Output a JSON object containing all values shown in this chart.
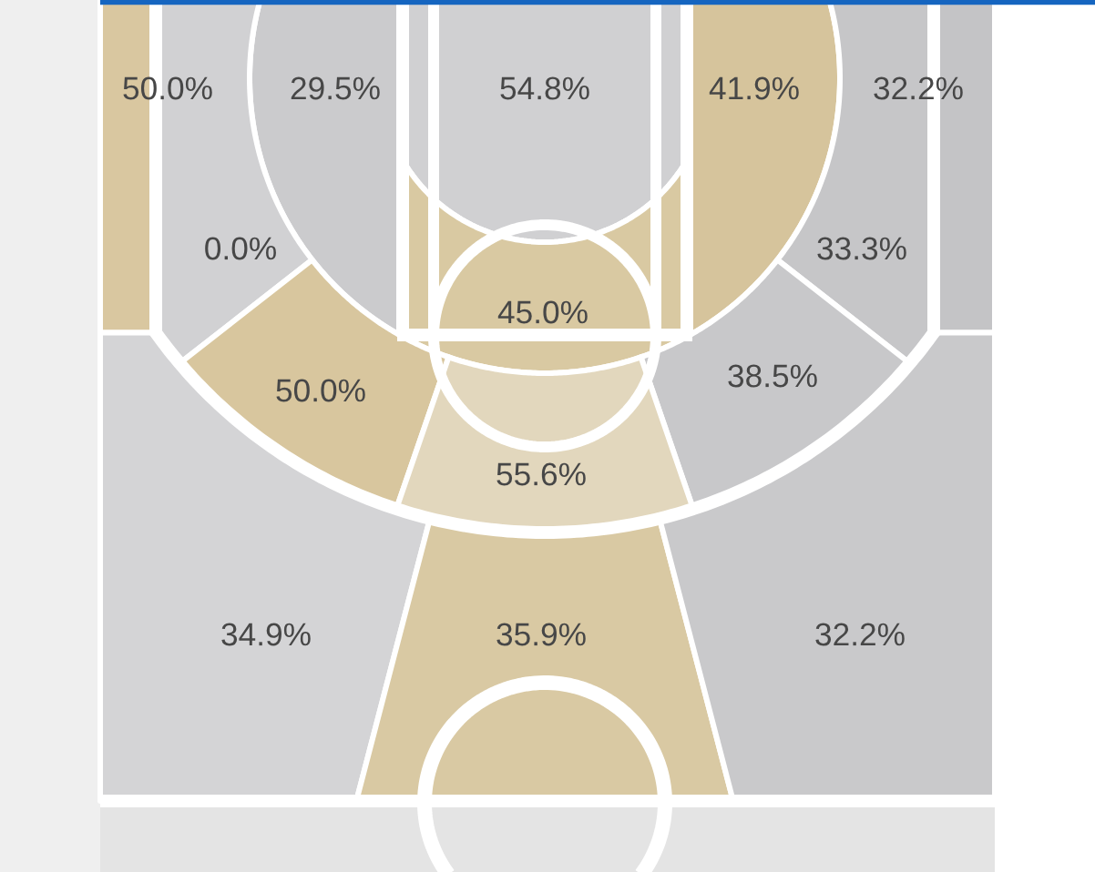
{
  "chart_data": {
    "type": "other",
    "categories": [
      null,
      null,
      null,
      null,
      null,
      null,
      null,
      null,
      null,
      null,
      null,
      null,
      null,
      null
    ],
    "values": [
      50.0,
      29.5,
      54.8,
      41.9,
      32.2,
      0.0,
      33.3,
      45.0,
      50.0,
      38.5,
      55.6,
      34.9,
      35.9,
      32.2
    ],
    "value_labels": [
      "50.0%",
      "29.5%",
      "54.8%",
      "41.9%",
      "32.2%",
      "0.0%",
      "33.3%",
      "45.0%",
      "50.0%",
      "38.5%",
      "55.6%",
      "34.9%",
      "35.9%",
      "32.2%"
    ],
    "colors": [
      "#d9c7a0",
      "#cbcbcd",
      "#d0d0d2",
      "#d6c49c",
      "#c4c4c6",
      "#d1d1d3",
      "#c6c6c8",
      "#d9c9a2",
      "#d8c69e",
      "#c8c8ca",
      "#e2d7bd",
      "#d4d4d6",
      "#d9c9a3",
      "#c9c9cb"
    ]
  }
}
